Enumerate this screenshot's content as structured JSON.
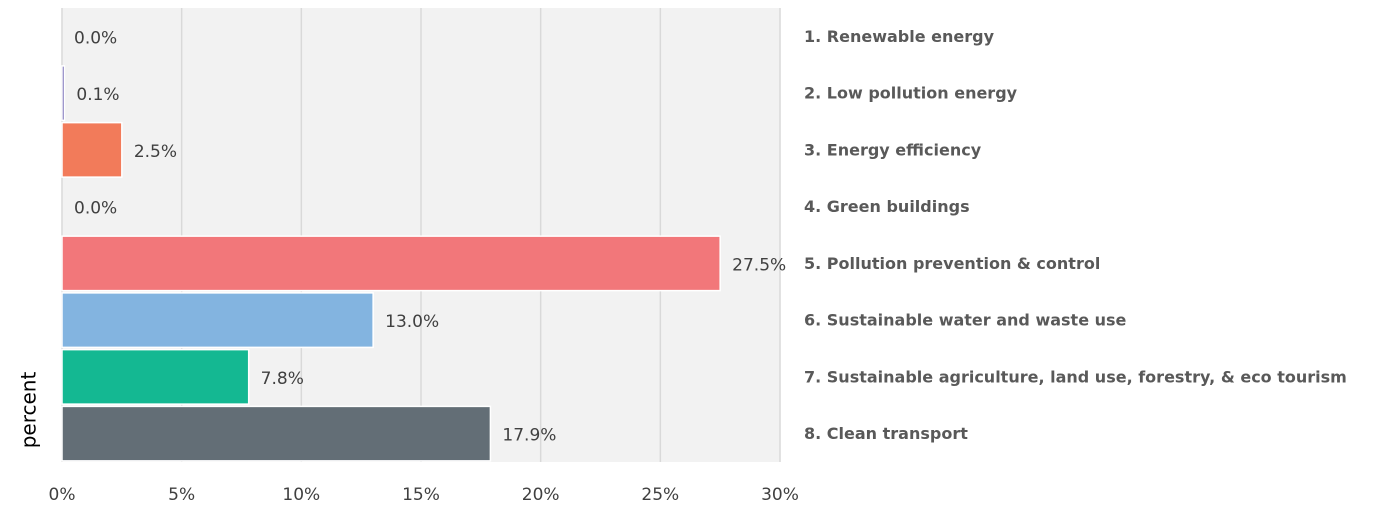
{
  "chart_data": {
    "type": "barh",
    "x_label": "percent",
    "categories": [
      "1. Renewable energy",
      "2. Low pollution energy",
      "3. Energy efficiency",
      "4. Green buildings",
      "5. Pollution prevention & control",
      "6. Sustainable water and waste use",
      "7. Sustainable agriculture, land use, forestry, & eco tourism",
      "8. Clean transport"
    ],
    "values": [
      0.0,
      0.1,
      2.5,
      0.0,
      27.5,
      13.0,
      7.8,
      17.9
    ],
    "value_labels": [
      "0.0%",
      "0.1%",
      "2.5%",
      "0.0%",
      "27.5%",
      "13.0%",
      "7.8%",
      "17.9%"
    ],
    "colors": [
      "#4472c4",
      "#6a5fb0",
      "#f27b5a",
      "#a5a5a5",
      "#f2777a",
      "#83b4e0",
      "#14b892",
      "#636e76"
    ],
    "xlim": [
      0,
      30
    ],
    "xticks": [
      {
        "value": 0,
        "label": "0%"
      },
      {
        "value": 5,
        "label": "5%"
      },
      {
        "value": 10,
        "label": "10%"
      },
      {
        "value": 15,
        "label": "15%"
      },
      {
        "value": 20,
        "label": "20%"
      },
      {
        "value": 25,
        "label": "25%"
      },
      {
        "value": 30,
        "label": "30%"
      }
    ],
    "grid": true
  }
}
